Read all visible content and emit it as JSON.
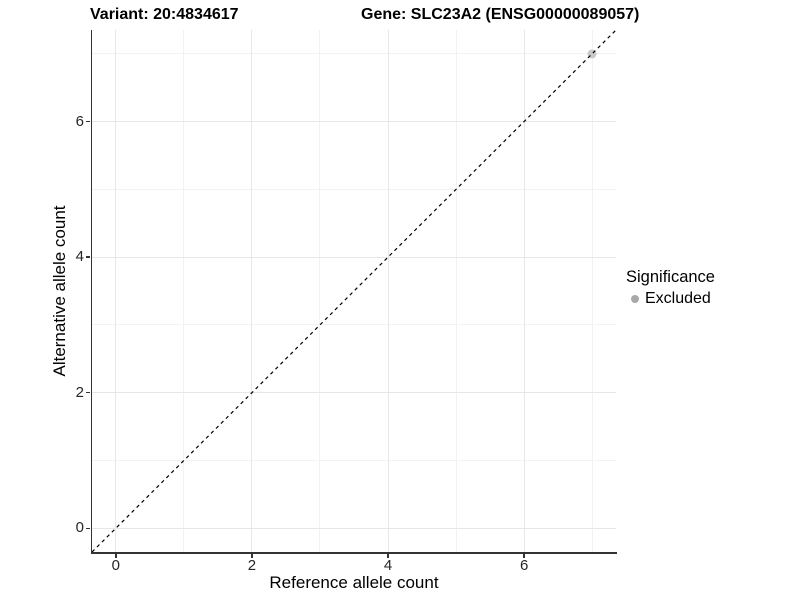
{
  "chart_data": {
    "type": "scatter",
    "title_left": "Variant: 20:4834617",
    "title_right": "Gene: SLC23A2 (ENSG00000089057)",
    "xlabel": "Reference allele count",
    "ylabel": "Alternative allele count",
    "xlim": [
      -0.35,
      7.35
    ],
    "ylim": [
      -0.35,
      7.35
    ],
    "x_ticks": [
      0,
      2,
      4,
      6
    ],
    "y_ticks": [
      0,
      2,
      4,
      6
    ],
    "x_minor_ticks": [
      1,
      3,
      5,
      7
    ],
    "y_minor_ticks": [
      1,
      3,
      5,
      7
    ],
    "grid": "major+minor",
    "reference_line": {
      "type": "identity",
      "from": -0.35,
      "to": 7.35,
      "style": "dashed",
      "color": "#000000"
    },
    "series": [
      {
        "name": "Excluded",
        "color": "#c9c9c9",
        "points": [
          {
            "x": 7,
            "y": 7
          }
        ]
      }
    ],
    "legend": {
      "title": "Significance",
      "position": "right",
      "items": [
        {
          "label": "Excluded",
          "color": "#a9a9a9"
        }
      ]
    },
    "style": {
      "grid_major_color": "#e7e7e7",
      "grid_minor_color": "#f2f2f2",
      "axis_line_color": "#333333",
      "background": "#ffffff"
    }
  }
}
